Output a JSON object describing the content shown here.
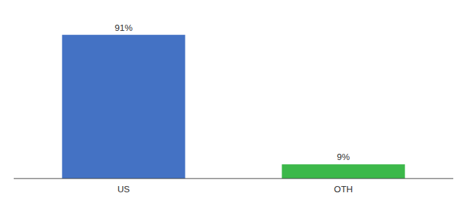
{
  "chart_data": {
    "type": "bar",
    "categories": [
      "US",
      "OTH"
    ],
    "values": [
      91,
      9
    ],
    "value_labels": [
      "91%",
      "9%"
    ],
    "colors": [
      "#4472c4",
      "#3cb84a"
    ],
    "ylim": [
      0,
      100
    ],
    "data_labels": true,
    "tick_labels": "x",
    "grid": false
  }
}
